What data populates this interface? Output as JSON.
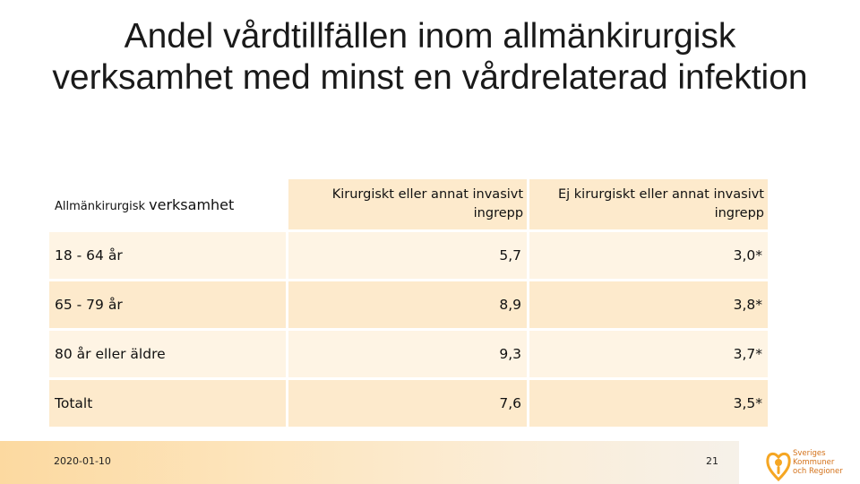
{
  "slide": {
    "title": "Andel vårdtillfällen inom allmänkirurgisk verksamhet med minst en vårdrelaterad infektion"
  },
  "table": {
    "row_header_small": "Allmänkirurgisk",
    "row_header_big": "verksamhet",
    "columns": [
      {
        "line1": "Kirurgiskt eller annat invasivt",
        "line2": "ingrepp"
      },
      {
        "line1": "Ej kirurgiskt eller annat invasivt",
        "line2": "ingrepp"
      }
    ],
    "rows": [
      {
        "label": "18 - 64 år",
        "v1": "5,7",
        "v2": "3,0*"
      },
      {
        "label": "65 - 79 år",
        "v1": "8,9",
        "v2": "3,8*"
      },
      {
        "label": "80 år eller äldre",
        "v1": "9,3",
        "v2": "3,7*"
      },
      {
        "label": "Totalt",
        "v1": "7,6",
        "v2": "3,5*"
      }
    ]
  },
  "footer": {
    "date": "2020-01-10",
    "page": "21",
    "logo_lines": [
      "Sveriges",
      "Kommuner",
      "och Regioner"
    ],
    "accent": "#f5a623"
  }
}
